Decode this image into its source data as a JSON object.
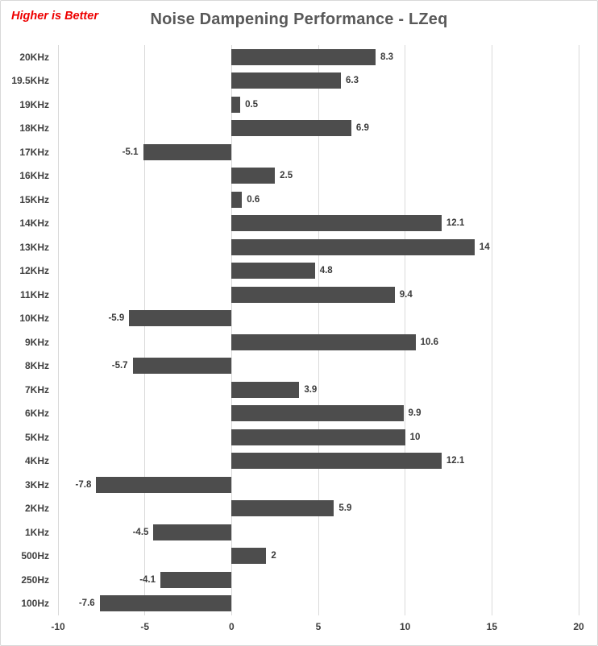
{
  "chart": {
    "note": "Higher is Better",
    "title": "Noise Dampening Performance - LZeq"
  },
  "chart_data": {
    "type": "bar",
    "orientation": "horizontal",
    "title": "Noise Dampening Performance - LZeq",
    "annotation": "Higher is Better",
    "categories": [
      "20KHz",
      "19.5KHz",
      "19KHz",
      "18KHz",
      "17KHz",
      "16KHz",
      "15KHz",
      "14KHz",
      "13KHz",
      "12KHz",
      "11KHz",
      "10KHz",
      "9KHz",
      "8KHz",
      "7KHz",
      "6KHz",
      "5KHz",
      "4KHz",
      "3KHz",
      "2KHz",
      "1KHz",
      "500Hz",
      "250Hz",
      "100Hz"
    ],
    "values": [
      8.3,
      6.3,
      0.5,
      6.9,
      -5.1,
      2.5,
      0.6,
      12.1,
      14,
      4.8,
      9.4,
      -5.9,
      10.6,
      -5.7,
      3.9,
      9.9,
      10,
      12.1,
      -7.8,
      5.9,
      -4.5,
      2,
      -4.1,
      -7.6
    ],
    "xlabel": "",
    "ylabel": "",
    "xlim": [
      -10,
      20
    ],
    "x_ticks": [
      -10,
      -5,
      0,
      5,
      10,
      15,
      20
    ],
    "grid": true,
    "legend": "none",
    "colors": {
      "bar": "#4d4d4d",
      "gridline": "#d9d9d9",
      "title": "#595959",
      "annotation": "#ee0000",
      "axis_text": "#3f3f3f",
      "data_label": "#3b3b3b"
    }
  }
}
